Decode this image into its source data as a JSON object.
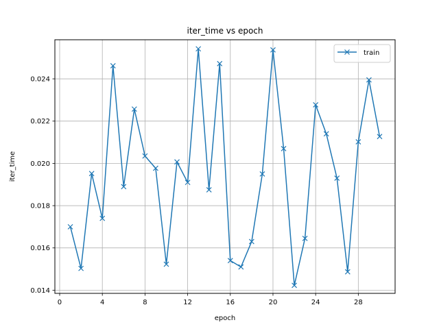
{
  "chart_data": {
    "type": "line",
    "title": "iter_time vs epoch",
    "xlabel": "epoch",
    "ylabel": "iter_time",
    "xlim": [
      -0.45,
      31.45
    ],
    "ylim": [
      0.01385,
      0.02585
    ],
    "xticks": [
      0,
      4,
      8,
      12,
      16,
      20,
      24,
      28
    ],
    "xtick_labels": [
      "0",
      "4",
      "8",
      "12",
      "16",
      "20",
      "24",
      "28"
    ],
    "yticks": [
      0.014,
      0.016,
      0.018,
      0.02,
      0.022,
      0.024
    ],
    "ytick_labels": [
      "0.014",
      "0.016",
      "0.018",
      "0.020",
      "0.022",
      "0.024"
    ],
    "grid": true,
    "legend_position": "top-right",
    "series": [
      {
        "name": "train",
        "color": "#1f77b4",
        "marker": "x",
        "x": [
          1,
          2,
          3,
          4,
          5,
          6,
          7,
          8,
          9,
          10,
          11,
          12,
          13,
          14,
          15,
          16,
          17,
          18,
          19,
          20,
          21,
          22,
          23,
          24,
          25,
          26,
          27,
          28,
          29,
          30
        ],
        "values": [
          0.017,
          0.01503,
          0.01952,
          0.0174,
          0.02462,
          0.0189,
          0.02257,
          0.02035,
          0.01977,
          0.01523,
          0.02007,
          0.0191,
          0.02542,
          0.01875,
          0.02472,
          0.0154,
          0.0151,
          0.0163,
          0.0195,
          0.02537,
          0.0207,
          0.01423,
          0.01645,
          0.02277,
          0.0214,
          0.0193,
          0.01487,
          0.02102,
          0.02395,
          0.02127
        ]
      }
    ]
  }
}
